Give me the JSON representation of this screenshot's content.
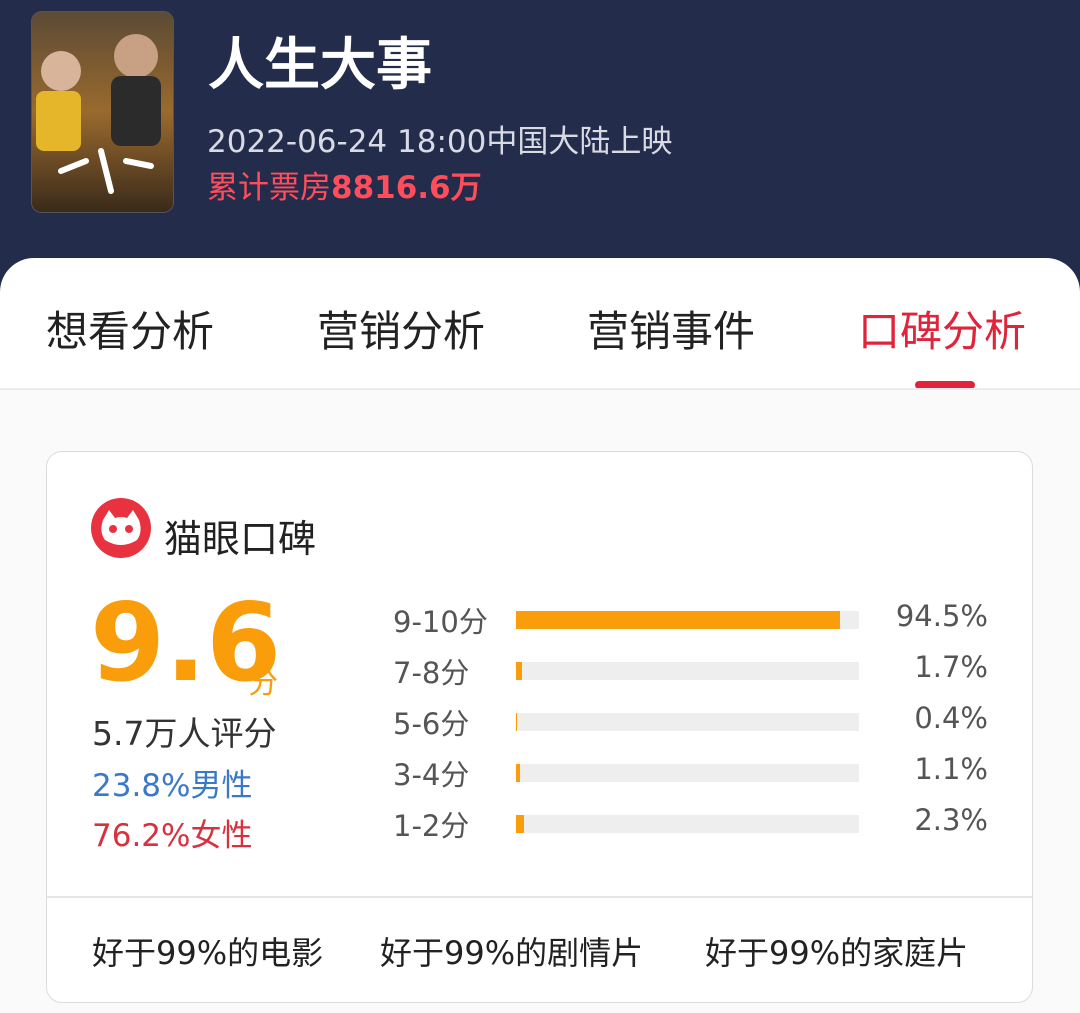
{
  "movie": {
    "title": "人生大事",
    "release": "2022-06-24 18:00中国大陆上映",
    "box_office_label": "累计票房",
    "box_office_value": "8816.6万"
  },
  "tabs": [
    "想看分析",
    "营销分析",
    "营销事件",
    "口碑分析"
  ],
  "active_tab": 3,
  "card": {
    "title": "猫眼口碑",
    "score": "9.6",
    "score_unit": "分",
    "raters": "5.7万人评分",
    "male": "23.8%男性",
    "female": "76.2%女性",
    "distribution": {
      "labels": [
        "9-10分",
        "7-8分",
        "5-6分",
        "3-4分",
        "1-2分"
      ],
      "values": [
        94.5,
        1.7,
        0.4,
        1.1,
        2.3
      ],
      "value_labels": [
        "94.5%",
        "1.7%",
        "0.4%",
        "1.1%",
        "2.3%"
      ],
      "xlim": [
        0,
        100
      ],
      "color": "#f99d0b"
    },
    "footer": [
      "好于99%的电影",
      "好于99%的剧情片",
      "好于99%的家庭片"
    ]
  }
}
